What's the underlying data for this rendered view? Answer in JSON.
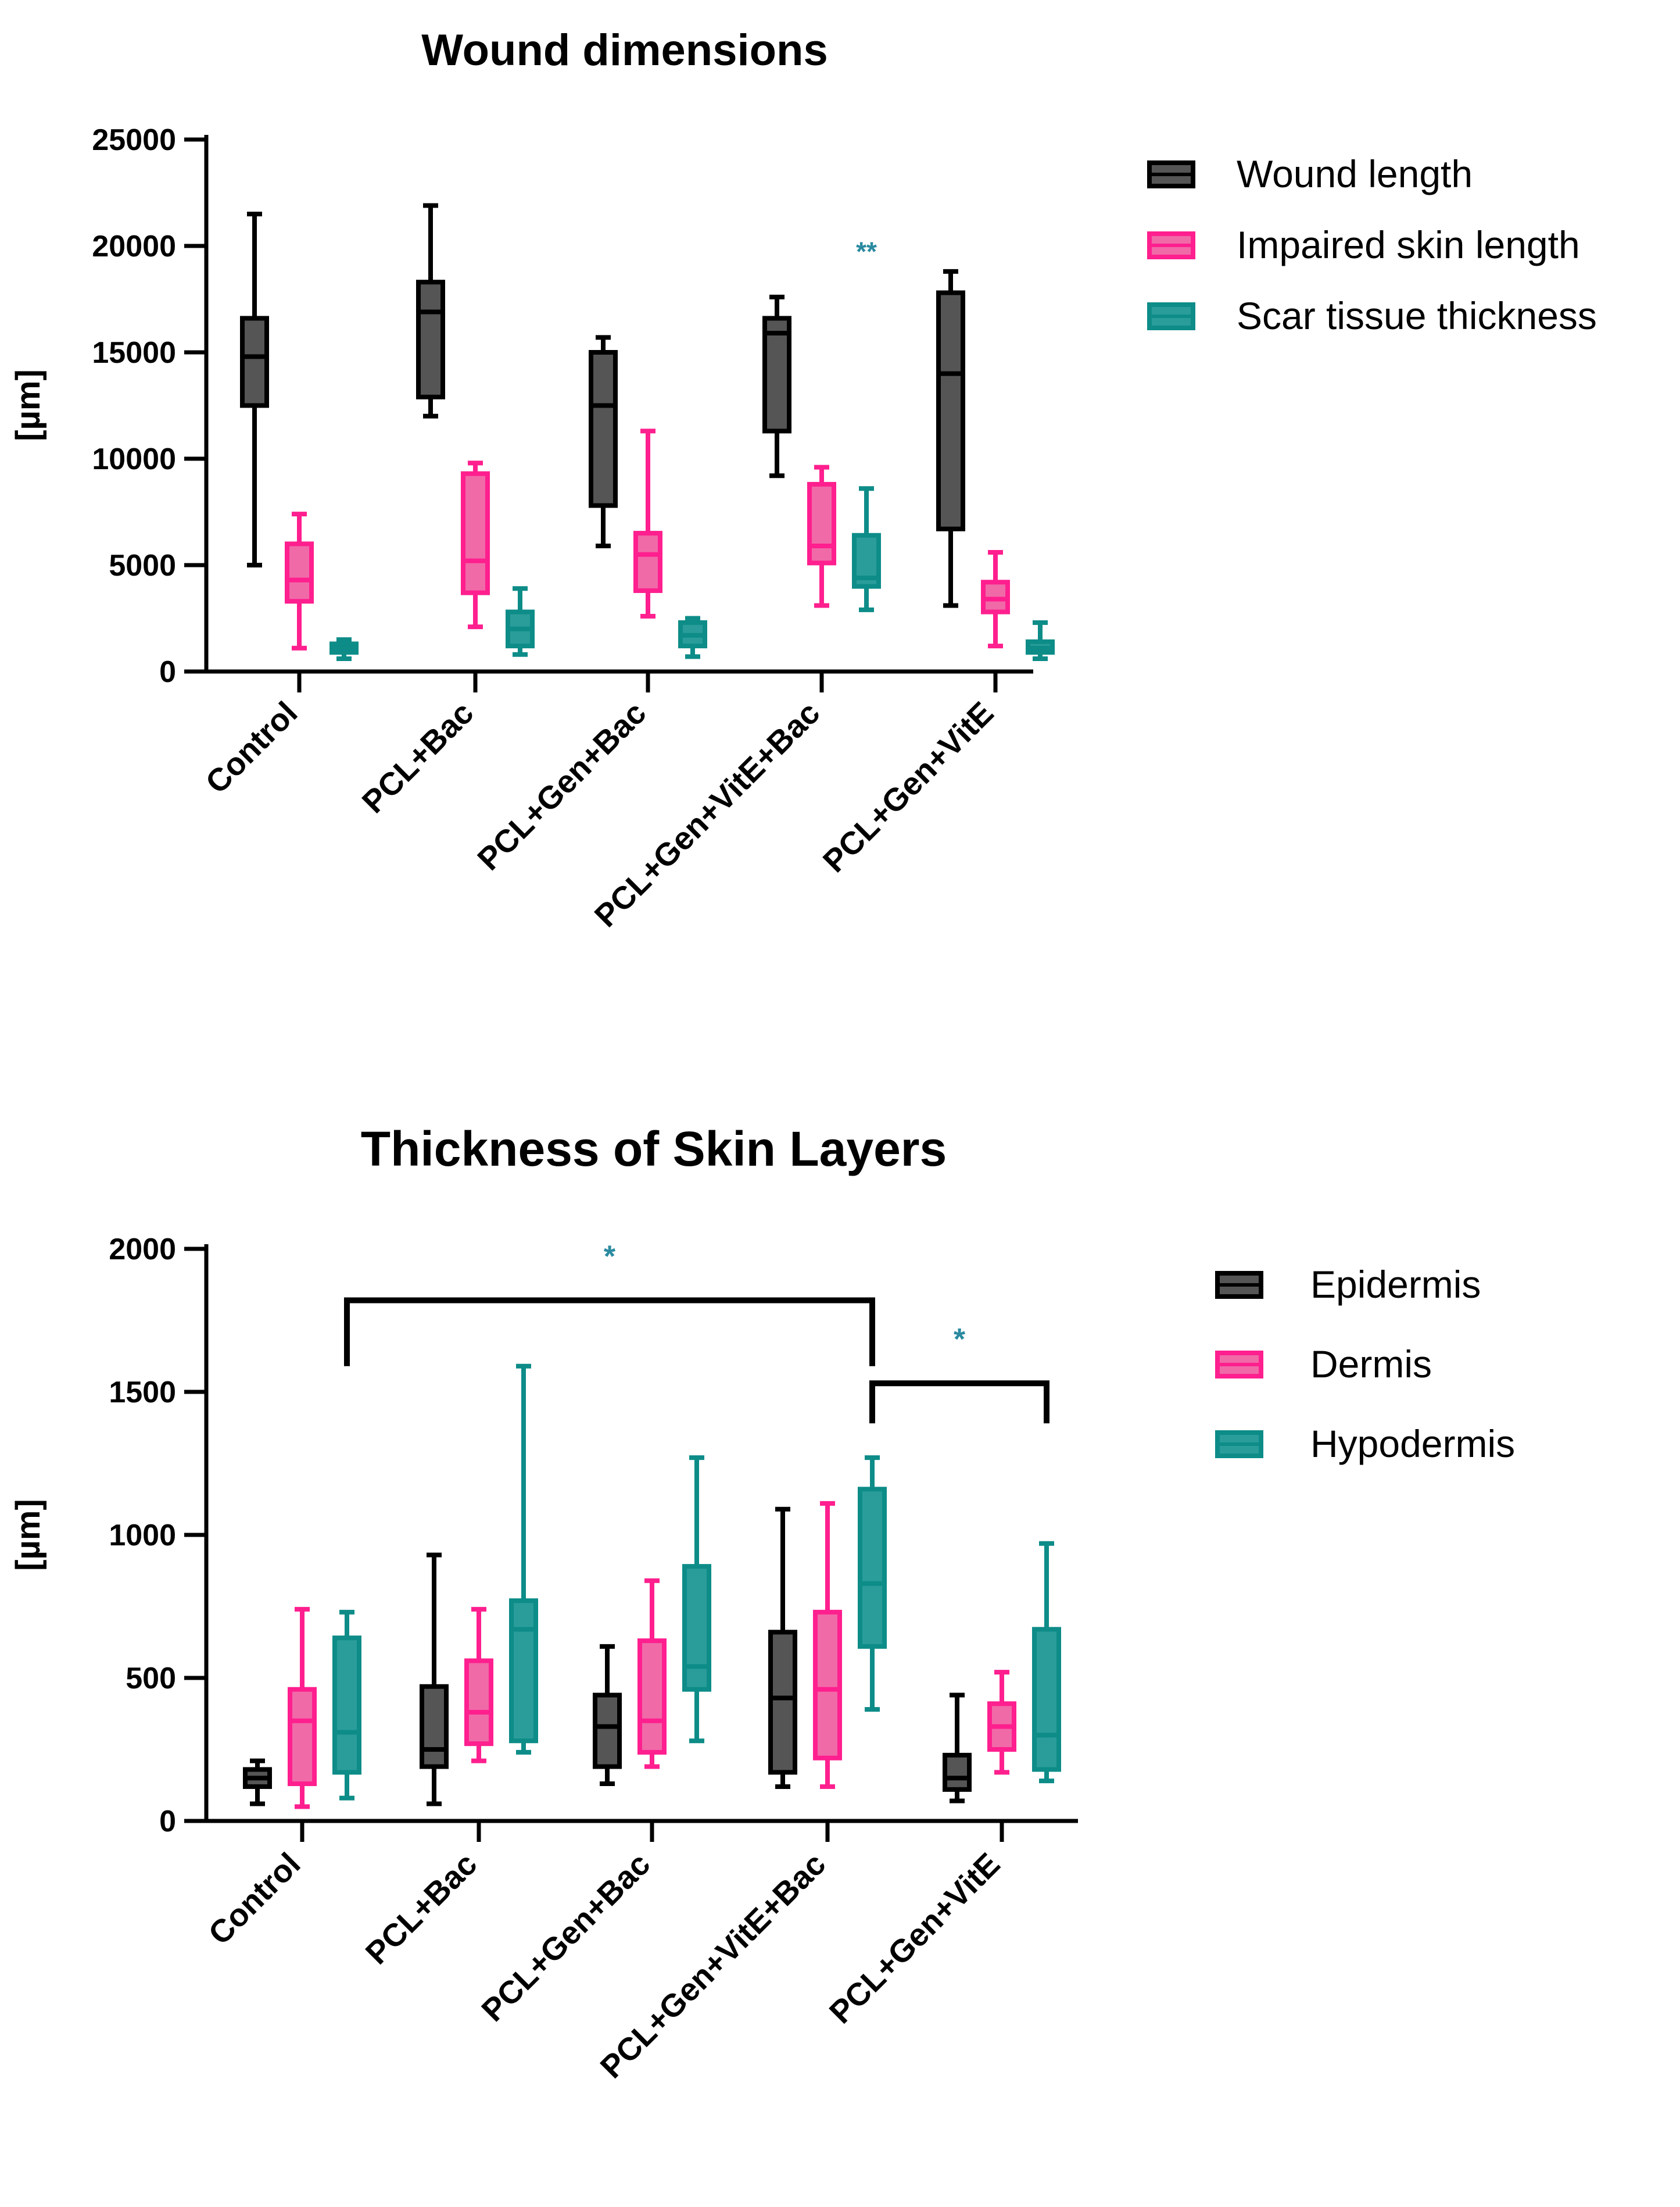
{
  "colors": {
    "axis": "#000000",
    "significance": "#2a8aa0"
  },
  "chart_data": [
    {
      "type": "box",
      "title": "Wound dimensions",
      "ylabel": "[µm]",
      "ylim": [
        0,
        25000
      ],
      "yticks": [
        0,
        5000,
        10000,
        15000,
        20000,
        25000
      ],
      "categories": [
        "Control",
        "PCL+Bac",
        "PCL+Gen+Bac",
        "PCL+Gen+VitE+Bac",
        "PCL+Gen+VitE"
      ],
      "legend_position": "right",
      "series": [
        {
          "name": "Wound length",
          "fill": "#555555",
          "stroke": "#000000",
          "boxes": [
            {
              "min": 5000,
              "q1": 12500,
              "median": 14800,
              "q3": 16600,
              "max": 21500
            },
            {
              "min": 12000,
              "q1": 12900,
              "median": 16900,
              "q3": 18300,
              "max": 21900
            },
            {
              "min": 5900,
              "q1": 7800,
              "median": 12500,
              "q3": 15000,
              "max": 15700
            },
            {
              "min": 9200,
              "q1": 11300,
              "median": 15900,
              "q3": 16600,
              "max": 17600
            },
            {
              "min": 3100,
              "q1": 6700,
              "median": 14000,
              "q3": 17800,
              "max": 18800
            }
          ]
        },
        {
          "name": "Impaired skin length",
          "fill": "#f06aa8",
          "stroke": "#ff1f8e",
          "boxes": [
            {
              "min": 1100,
              "q1": 3300,
              "median": 4300,
              "q3": 6000,
              "max": 7400
            },
            {
              "min": 2100,
              "q1": 3700,
              "median": 5200,
              "q3": 9300,
              "max": 9800
            },
            {
              "min": 2600,
              "q1": 3800,
              "median": 5500,
              "q3": 6500,
              "max": 11300
            },
            {
              "min": 3100,
              "q1": 5100,
              "median": 5900,
              "q3": 8800,
              "max": 9600
            },
            {
              "min": 1200,
              "q1": 2800,
              "median": 3400,
              "q3": 4200,
              "max": 5600
            }
          ]
        },
        {
          "name": "Scar tissue thickness",
          "fill": "#2a9d9a",
          "stroke": "#0d8c88",
          "boxes": [
            {
              "min": 600,
              "q1": 900,
              "median": 1100,
              "q3": 1300,
              "max": 1500
            },
            {
              "min": 800,
              "q1": 1200,
              "median": 2000,
              "q3": 2800,
              "max": 3900
            },
            {
              "min": 700,
              "q1": 1200,
              "median": 1700,
              "q3": 2300,
              "max": 2500
            },
            {
              "min": 2900,
              "q1": 4000,
              "median": 4400,
              "q3": 6400,
              "max": 8600
            },
            {
              "min": 600,
              "q1": 900,
              "median": 1100,
              "q3": 1400,
              "max": 2300
            }
          ]
        }
      ],
      "annotations": [
        {
          "text": "**",
          "category_index": 3,
          "series_index": 2,
          "y": 19300
        }
      ]
    },
    {
      "type": "box",
      "title": "Thickness of Skin Layers",
      "ylabel": "[µm]",
      "ylim": [
        0,
        2000
      ],
      "yticks": [
        0,
        500,
        1000,
        1500,
        2000
      ],
      "categories": [
        "Control",
        "PCL+Bac",
        "PCL+Gen+Bac",
        "PCL+Gen+VitE+Bac",
        "PCL+Gen+VitE"
      ],
      "legend_position": "right",
      "series": [
        {
          "name": "Epidermis",
          "fill": "#555555",
          "stroke": "#000000",
          "boxes": [
            {
              "min": 60,
              "q1": 120,
              "median": 150,
              "q3": 180,
              "max": 210
            },
            {
              "min": 60,
              "q1": 190,
              "median": 250,
              "q3": 470,
              "max": 930
            },
            {
              "min": 130,
              "q1": 190,
              "median": 330,
              "q3": 440,
              "max": 610
            },
            {
              "min": 120,
              "q1": 170,
              "median": 430,
              "q3": 660,
              "max": 1090
            },
            {
              "min": 70,
              "q1": 110,
              "median": 150,
              "q3": 230,
              "max": 440
            }
          ]
        },
        {
          "name": "Dermis",
          "fill": "#f06aa8",
          "stroke": "#ff1f8e",
          "boxes": [
            {
              "min": 50,
              "q1": 130,
              "median": 350,
              "q3": 460,
              "max": 740
            },
            {
              "min": 210,
              "q1": 270,
              "median": 380,
              "q3": 560,
              "max": 740
            },
            {
              "min": 190,
              "q1": 240,
              "median": 350,
              "q3": 630,
              "max": 840
            },
            {
              "min": 120,
              "q1": 220,
              "median": 460,
              "q3": 730,
              "max": 1110
            },
            {
              "min": 170,
              "q1": 250,
              "median": 330,
              "q3": 410,
              "max": 520
            }
          ]
        },
        {
          "name": "Hypodermis",
          "fill": "#2a9d9a",
          "stroke": "#0d8c88",
          "boxes": [
            {
              "min": 80,
              "q1": 170,
              "median": 310,
              "q3": 640,
              "max": 730
            },
            {
              "min": 240,
              "q1": 280,
              "median": 670,
              "q3": 770,
              "max": 1590
            },
            {
              "min": 280,
              "q1": 460,
              "median": 540,
              "q3": 890,
              "max": 1270
            },
            {
              "min": 390,
              "q1": 610,
              "median": 830,
              "q3": 1160,
              "max": 1270
            },
            {
              "min": 140,
              "q1": 180,
              "median": 300,
              "q3": 670,
              "max": 970
            }
          ]
        }
      ],
      "brackets": [
        {
          "from_category": 0,
          "to_category": 3,
          "y": 1820,
          "drop_to": 1590,
          "label": "*"
        },
        {
          "from_category": 3,
          "to_category": 4,
          "y": 1530,
          "drop_to": 1390,
          "label": "*"
        }
      ]
    }
  ]
}
